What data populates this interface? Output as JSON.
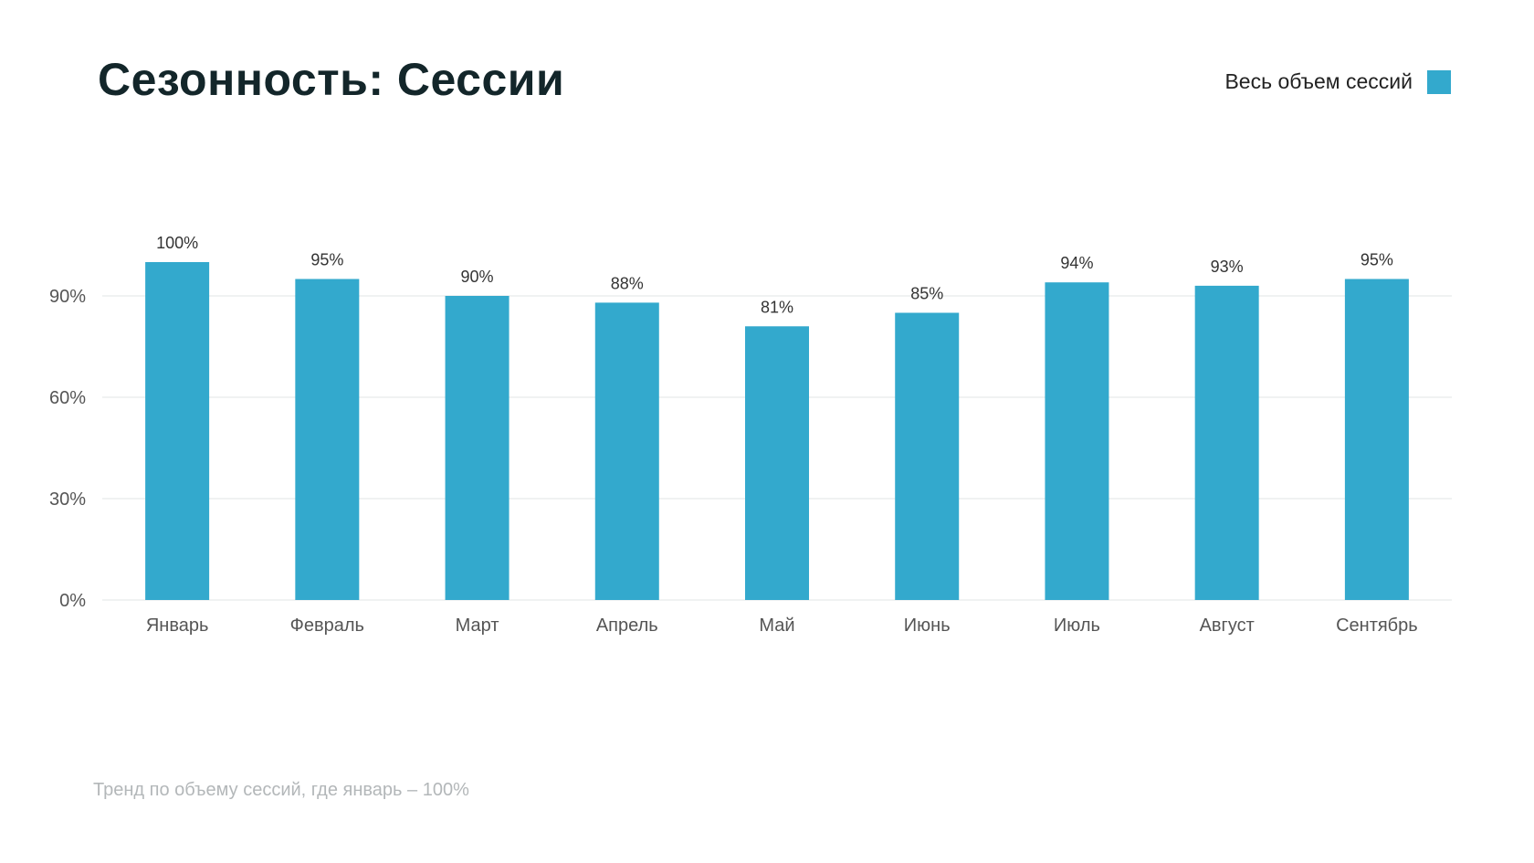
{
  "header": {
    "title": "Сезонность: Сессии"
  },
  "legend": {
    "label": "Весь объем сессий",
    "color": "#33a9cd"
  },
  "footnote": "Тренд по объему сессий, где январь – 100%",
  "chart_data": {
    "type": "bar",
    "title": "Сезонность: Сессии",
    "categories": [
      "Январь",
      "Февраль",
      "Март",
      "Апрель",
      "Май",
      "Июнь",
      "Июль",
      "Август",
      "Сентябрь"
    ],
    "series": [
      {
        "name": "Весь объем сессий",
        "values": [
          100,
          95,
          90,
          88,
          81,
          85,
          94,
          93,
          95
        ],
        "color": "#33a9cd"
      }
    ],
    "value_labels": [
      "100%",
      "95%",
      "90%",
      "88%",
      "81%",
      "85%",
      "94%",
      "93%",
      "95%"
    ],
    "yticks": [
      0,
      30,
      60,
      90
    ],
    "ytick_labels": [
      "0%",
      "30%",
      "60%",
      "90%"
    ],
    "ylim": [
      0,
      100
    ],
    "grid": true,
    "grid_color": "#e2e4e6",
    "legend_position": "top-right",
    "xlabel": "",
    "ylabel": ""
  }
}
